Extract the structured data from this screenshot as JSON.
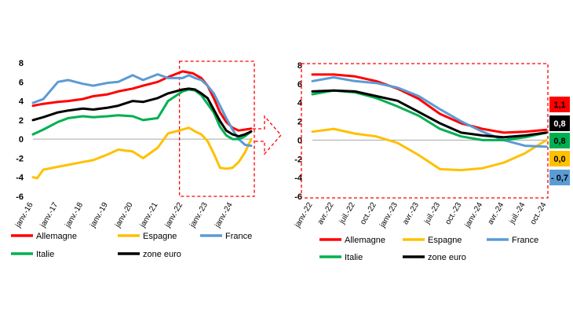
{
  "chart_data": [
    {
      "type": "line",
      "title": "",
      "xlabel": "",
      "ylabel": "",
      "ylim": [
        -6,
        8
      ],
      "yticks": [
        -6,
        -4,
        -2,
        0,
        2,
        4,
        6,
        8
      ],
      "x_start": "2016-01",
      "x_end": "2024-10",
      "x_tick_labels": [
        "janv.-16",
        "janv.-17",
        "janv.-18",
        "janv.-19",
        "janv.-20",
        "janv.-21",
        "janv.-22",
        "janv.-23",
        "janv.-24"
      ],
      "x_tick_dates": [
        "2016-01",
        "2017-01",
        "2018-01",
        "2019-01",
        "2020-01",
        "2021-01",
        "2022-01",
        "2023-01",
        "2024-01"
      ],
      "grid": false,
      "legend_position": "bottom",
      "highlight_box": {
        "x_from": "2022-01",
        "x_to": "2024-10",
        "y_from": -6,
        "y_to": 8
      },
      "series": [
        {
          "name": "Allemagne",
          "color": "#ff0000",
          "points": [
            [
              "2016-01",
              3.5
            ],
            [
              "2016-06",
              3.7
            ],
            [
              "2017-01",
              3.9
            ],
            [
              "2017-06",
              4.0
            ],
            [
              "2018-01",
              4.2
            ],
            [
              "2018-06",
              4.5
            ],
            [
              "2019-01",
              4.7
            ],
            [
              "2019-06",
              5.0
            ],
            [
              "2020-01",
              5.3
            ],
            [
              "2020-06",
              5.6
            ],
            [
              "2021-01",
              6.0
            ],
            [
              "2021-06",
              6.5
            ],
            [
              "2022-01",
              7.1
            ],
            [
              "2022-06",
              6.9
            ],
            [
              "2022-10",
              6.4
            ],
            [
              "2023-01",
              5.6
            ],
            [
              "2023-04",
              4.3
            ],
            [
              "2023-07",
              2.8
            ],
            [
              "2023-10",
              1.8
            ],
            [
              "2024-01",
              1.2
            ],
            [
              "2024-04",
              0.9
            ],
            [
              "2024-07",
              1.0
            ],
            [
              "2024-10",
              1.1
            ]
          ]
        },
        {
          "name": "Espagne",
          "color": "#ffc000",
          "points": [
            [
              "2016-01",
              -4.0
            ],
            [
              "2016-03",
              -4.1
            ],
            [
              "2016-06",
              -3.2
            ],
            [
              "2017-01",
              -2.9
            ],
            [
              "2017-06",
              -2.7
            ],
            [
              "2018-01",
              -2.4
            ],
            [
              "2018-06",
              -2.2
            ],
            [
              "2019-01",
              -1.6
            ],
            [
              "2019-06",
              -1.1
            ],
            [
              "2020-01",
              -1.3
            ],
            [
              "2020-06",
              -2.0
            ],
            [
              "2021-01",
              -0.9
            ],
            [
              "2021-06",
              0.6
            ],
            [
              "2022-01",
              1.0
            ],
            [
              "2022-04",
              1.2
            ],
            [
              "2022-07",
              0.8
            ],
            [
              "2022-10",
              0.5
            ],
            [
              "2023-01",
              -0.2
            ],
            [
              "2023-04",
              -1.5
            ],
            [
              "2023-07",
              -3.0
            ],
            [
              "2023-10",
              -3.1
            ],
            [
              "2024-01",
              -3.0
            ],
            [
              "2024-04",
              -2.4
            ],
            [
              "2024-07",
              -1.4
            ],
            [
              "2024-10",
              0.0
            ]
          ]
        },
        {
          "name": "France",
          "color": "#5b9bd5",
          "points": [
            [
              "2016-01",
              3.8
            ],
            [
              "2016-06",
              4.2
            ],
            [
              "2017-01",
              6.0
            ],
            [
              "2017-06",
              6.2
            ],
            [
              "2018-01",
              5.8
            ],
            [
              "2018-06",
              5.6
            ],
            [
              "2019-01",
              5.9
            ],
            [
              "2019-06",
              6.0
            ],
            [
              "2020-01",
              6.7
            ],
            [
              "2020-06",
              6.2
            ],
            [
              "2021-01",
              6.8
            ],
            [
              "2021-06",
              6.4
            ],
            [
              "2022-01",
              6.4
            ],
            [
              "2022-04",
              6.7
            ],
            [
              "2022-07",
              6.4
            ],
            [
              "2022-10",
              6.2
            ],
            [
              "2023-01",
              5.6
            ],
            [
              "2023-04",
              4.8
            ],
            [
              "2023-07",
              3.5
            ],
            [
              "2023-10",
              2.2
            ],
            [
              "2024-01",
              1.0
            ],
            [
              "2024-04",
              0.0
            ],
            [
              "2024-07",
              -0.6
            ],
            [
              "2024-10",
              -0.7
            ]
          ]
        },
        {
          "name": "Italie",
          "color": "#00b050",
          "points": [
            [
              "2016-01",
              0.5
            ],
            [
              "2016-06",
              1.0
            ],
            [
              "2017-01",
              1.8
            ],
            [
              "2017-06",
              2.2
            ],
            [
              "2018-01",
              2.4
            ],
            [
              "2018-06",
              2.3
            ],
            [
              "2019-01",
              2.4
            ],
            [
              "2019-06",
              2.5
            ],
            [
              "2020-01",
              2.4
            ],
            [
              "2020-06",
              2.0
            ],
            [
              "2021-01",
              2.2
            ],
            [
              "2021-06",
              4.0
            ],
            [
              "2022-01",
              5.0
            ],
            [
              "2022-04",
              5.2
            ],
            [
              "2022-07",
              5.1
            ],
            [
              "2022-10",
              4.6
            ],
            [
              "2023-01",
              3.7
            ],
            [
              "2023-04",
              2.8
            ],
            [
              "2023-07",
              1.3
            ],
            [
              "2023-10",
              0.4
            ],
            [
              "2024-01",
              0.0
            ],
            [
              "2024-04",
              0.0
            ],
            [
              "2024-07",
              0.3
            ],
            [
              "2024-10",
              0.8
            ]
          ]
        },
        {
          "name": "zone euro",
          "color": "#000000",
          "points": [
            [
              "2016-01",
              2.0
            ],
            [
              "2016-06",
              2.3
            ],
            [
              "2017-01",
              2.8
            ],
            [
              "2017-06",
              3.0
            ],
            [
              "2018-01",
              3.2
            ],
            [
              "2018-06",
              3.1
            ],
            [
              "2019-01",
              3.3
            ],
            [
              "2019-06",
              3.5
            ],
            [
              "2020-01",
              4.0
            ],
            [
              "2020-06",
              3.9
            ],
            [
              "2021-01",
              4.3
            ],
            [
              "2021-06",
              4.8
            ],
            [
              "2022-01",
              5.2
            ],
            [
              "2022-04",
              5.3
            ],
            [
              "2022-07",
              5.2
            ],
            [
              "2022-10",
              4.8
            ],
            [
              "2023-01",
              4.3
            ],
            [
              "2023-04",
              3.1
            ],
            [
              "2023-07",
              1.9
            ],
            [
              "2023-10",
              0.9
            ],
            [
              "2024-01",
              0.5
            ],
            [
              "2024-04",
              0.3
            ],
            [
              "2024-07",
              0.5
            ],
            [
              "2024-10",
              0.8
            ]
          ]
        }
      ]
    },
    {
      "type": "line",
      "title": "",
      "xlabel": "",
      "ylabel": "",
      "ylim": [
        -6,
        8
      ],
      "yticks": [
        -6,
        -4,
        -2,
        0,
        2,
        4,
        6,
        8
      ],
      "x_start": "2022-01",
      "x_end": "2024-10",
      "x_tick_labels": [
        "janv.-22",
        "avr.-22",
        "juil.-22",
        "oct.-22",
        "janv.-23",
        "avr.-23",
        "juil.-23",
        "oct.-23",
        "janv.-24",
        "avr.-24",
        "juil.-24",
        "oct.-24"
      ],
      "x_tick_dates": [
        "2022-01",
        "2022-04",
        "2022-07",
        "2022-10",
        "2023-01",
        "2023-04",
        "2023-07",
        "2023-10",
        "2024-01",
        "2024-04",
        "2024-07",
        "2024-10"
      ],
      "grid": false,
      "legend_position": "bottom",
      "end_labels": [
        {
          "series": "Allemagne",
          "value": "1,1",
          "bg": "#ff0000",
          "fg": "#000000"
        },
        {
          "series": "zone euro",
          "value": "0,8",
          "bg": "#000000",
          "fg": "#ffffff"
        },
        {
          "series": "Italie",
          "value": "0,8",
          "bg": "#00b050",
          "fg": "#000000"
        },
        {
          "series": "Espagne",
          "value": "0,0",
          "bg": "#ffc000",
          "fg": "#000000"
        },
        {
          "series": "France",
          "value": "- 0,7",
          "bg": "#5b9bd5",
          "fg": "#000000"
        }
      ],
      "series": [
        {
          "name": "Allemagne",
          "color": "#ff0000",
          "points": [
            [
              "2022-01",
              7.0
            ],
            [
              "2022-04",
              7.0
            ],
            [
              "2022-07",
              6.8
            ],
            [
              "2022-10",
              6.3
            ],
            [
              "2023-01",
              5.5
            ],
            [
              "2023-04",
              4.4
            ],
            [
              "2023-07",
              2.8
            ],
            [
              "2023-10",
              1.8
            ],
            [
              "2024-01",
              1.2
            ],
            [
              "2024-04",
              0.8
            ],
            [
              "2024-07",
              0.9
            ],
            [
              "2024-10",
              1.1
            ]
          ]
        },
        {
          "name": "Espagne",
          "color": "#ffc000",
          "points": [
            [
              "2022-01",
              0.9
            ],
            [
              "2022-04",
              1.2
            ],
            [
              "2022-07",
              0.7
            ],
            [
              "2022-10",
              0.4
            ],
            [
              "2023-01",
              -0.3
            ],
            [
              "2023-04",
              -1.6
            ],
            [
              "2023-07",
              -3.1
            ],
            [
              "2023-10",
              -3.2
            ],
            [
              "2024-01",
              -3.0
            ],
            [
              "2024-04",
              -2.4
            ],
            [
              "2024-07",
              -1.4
            ],
            [
              "2024-10",
              0.0
            ]
          ]
        },
        {
          "name": "France",
          "color": "#5b9bd5",
          "points": [
            [
              "2022-01",
              6.3
            ],
            [
              "2022-04",
              6.7
            ],
            [
              "2022-07",
              6.3
            ],
            [
              "2022-10",
              6.1
            ],
            [
              "2023-01",
              5.6
            ],
            [
              "2023-04",
              4.7
            ],
            [
              "2023-07",
              3.3
            ],
            [
              "2023-10",
              2.0
            ],
            [
              "2024-01",
              0.9
            ],
            [
              "2024-04",
              0.0
            ],
            [
              "2024-07",
              -0.6
            ],
            [
              "2024-10",
              -0.7
            ]
          ]
        },
        {
          "name": "Italie",
          "color": "#00b050",
          "points": [
            [
              "2022-01",
              4.9
            ],
            [
              "2022-04",
              5.3
            ],
            [
              "2022-07",
              5.1
            ],
            [
              "2022-10",
              4.5
            ],
            [
              "2023-01",
              3.6
            ],
            [
              "2023-04",
              2.6
            ],
            [
              "2023-07",
              1.2
            ],
            [
              "2023-10",
              0.4
            ],
            [
              "2024-01",
              0.0
            ],
            [
              "2024-04",
              0.0
            ],
            [
              "2024-07",
              0.3
            ],
            [
              "2024-10",
              0.8
            ]
          ]
        },
        {
          "name": "zone euro",
          "color": "#000000",
          "points": [
            [
              "2022-01",
              5.2
            ],
            [
              "2022-04",
              5.3
            ],
            [
              "2022-07",
              5.2
            ],
            [
              "2022-10",
              4.7
            ],
            [
              "2023-01",
              4.2
            ],
            [
              "2023-04",
              3.0
            ],
            [
              "2023-07",
              1.8
            ],
            [
              "2023-10",
              0.8
            ],
            [
              "2024-01",
              0.5
            ],
            [
              "2024-04",
              0.3
            ],
            [
              "2024-07",
              0.5
            ],
            [
              "2024-10",
              0.8
            ]
          ]
        }
      ]
    }
  ]
}
